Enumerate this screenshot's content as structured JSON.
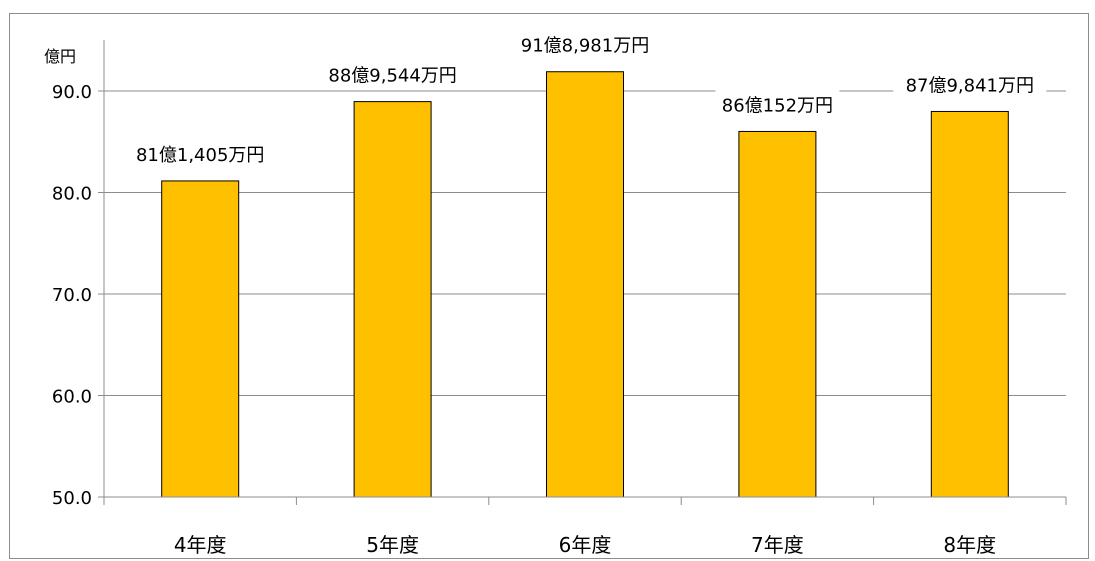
{
  "chart_data": {
    "type": "bar",
    "unit_label": "億円",
    "categories": [
      "4年度",
      "5年度",
      "6年度",
      "7年度",
      "8年度"
    ],
    "values": [
      81.1405,
      88.9544,
      91.8981,
      86.0152,
      87.9841
    ],
    "data_labels": [
      "81億1,405万円",
      "88億9,544万円",
      "91億8,981万円",
      "86億152万円",
      "87億9,841万円"
    ],
    "y_ticks": [
      "50.0",
      "60.0",
      "70.0",
      "80.0",
      "90.0"
    ],
    "ylim": [
      50,
      92
    ],
    "grid": true,
    "bar_color": "#FFC000",
    "title": "",
    "xlabel": "",
    "ylabel": ""
  }
}
